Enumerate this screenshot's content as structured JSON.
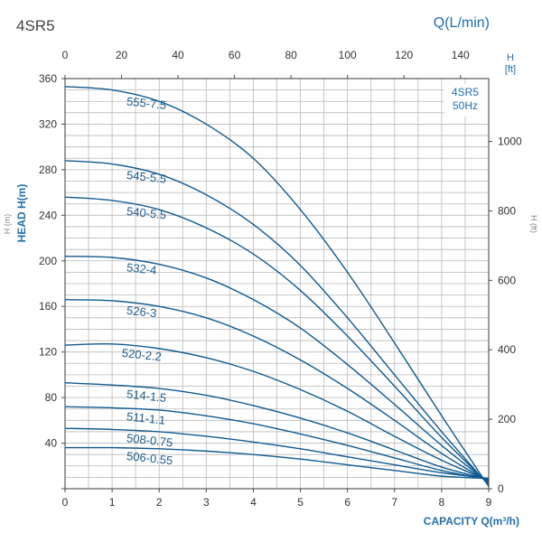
{
  "page": {
    "model_title": "4SR5"
  },
  "colors": {
    "curve": "#0f5a91",
    "accent": "#1f6fb1",
    "grid": "#b9b9b9",
    "text": "#333333",
    "label": "#1a5a8c"
  },
  "chart_data": {
    "type": "line",
    "title": "4SR5",
    "legend_box": [
      "4SR5",
      "50Hz"
    ],
    "xlabel": "CAPACITY Q(m³/h)",
    "x_top_label": "Q(L/min)",
    "ylabel": "HEAD H(m)",
    "y_right_label_top": "H",
    "y_right_label_unit": "[ft]",
    "y_left_faint": "H (m)",
    "y_right_faint": "H (ft)",
    "xlim": [
      0,
      9
    ],
    "ylim": [
      0,
      360
    ],
    "x_top_lim": [
      0,
      150
    ],
    "y_right_lim": [
      0,
      1181
    ],
    "x_ticks": [
      "0",
      "1",
      "2",
      "3",
      "4",
      "5",
      "6",
      "7",
      "8",
      "9"
    ],
    "x_top_ticks": [
      "0",
      "20",
      "40",
      "60",
      "80",
      "100",
      "120",
      "140"
    ],
    "y_ticks": [
      "0",
      "40",
      "80",
      "120",
      "160",
      "200",
      "240",
      "280",
      "320",
      "360"
    ],
    "y_right_ticks": [
      "0",
      "200",
      "400",
      "600",
      "800",
      "1000"
    ],
    "series": [
      {
        "name": "555-7.5",
        "x": [
          0,
          1,
          2,
          3,
          4,
          5,
          6,
          7,
          8,
          9
        ],
        "y": [
          353,
          350,
          340,
          320,
          290,
          245,
          190,
          128,
          64,
          2
        ]
      },
      {
        "name": "545-5.5",
        "x": [
          0,
          1,
          2,
          3,
          4,
          5,
          6,
          7,
          8,
          9
        ],
        "y": [
          288,
          285,
          276,
          258,
          232,
          196,
          150,
          100,
          50,
          3
        ]
      },
      {
        "name": "540-5.5",
        "x": [
          0,
          1,
          2,
          3,
          4,
          5,
          6,
          7,
          8,
          9
        ],
        "y": [
          256,
          253,
          245,
          229,
          206,
          174,
          134,
          90,
          45,
          4
        ]
      },
      {
        "name": "532-4",
        "x": [
          0,
          1,
          2,
          3,
          4,
          5,
          6,
          7,
          8,
          9
        ],
        "y": [
          204,
          203,
          197,
          185,
          166,
          141,
          109,
          74,
          38,
          5
        ]
      },
      {
        "name": "526-3",
        "x": [
          0,
          1,
          2,
          3,
          4,
          5,
          6,
          7,
          8,
          9
        ],
        "y": [
          166,
          165,
          160,
          150,
          134,
          113,
          88,
          60,
          31,
          6
        ]
      },
      {
        "name": "520-2.2",
        "x": [
          0,
          1,
          2,
          3,
          4,
          5,
          6,
          7,
          8,
          9
        ],
        "y": [
          126,
          127,
          123,
          115,
          103,
          87,
          68,
          46,
          25,
          7
        ]
      },
      {
        "name": "514-1.5",
        "x": [
          0,
          1,
          2,
          3,
          4,
          5,
          6,
          7,
          8,
          9
        ],
        "y": [
          93,
          91,
          88,
          82,
          73,
          62,
          49,
          34,
          19,
          8
        ]
      },
      {
        "name": "511-1.1",
        "x": [
          0,
          1,
          2,
          3,
          4,
          5,
          6,
          7,
          8,
          9
        ],
        "y": [
          72,
          71,
          69,
          64,
          57,
          48,
          38,
          27,
          16,
          8
        ]
      },
      {
        "name": "508-0.75",
        "x": [
          0,
          1,
          2,
          3,
          4,
          5,
          6,
          7,
          8,
          9
        ],
        "y": [
          53,
          52,
          50,
          46,
          41,
          35,
          28,
          21,
          14,
          9
        ]
      },
      {
        "name": "506-0.55",
        "x": [
          0,
          1,
          2,
          3,
          4,
          5,
          6,
          7,
          8,
          9
        ],
        "y": [
          36,
          36,
          35,
          33,
          30,
          26,
          21,
          16,
          11,
          9
        ]
      }
    ],
    "curve_label_anchor_x": [
      1.3,
      1.3,
      1.3,
      1.3,
      1.3,
      1.2,
      1.3,
      1.3,
      1.3,
      1.3
    ]
  }
}
